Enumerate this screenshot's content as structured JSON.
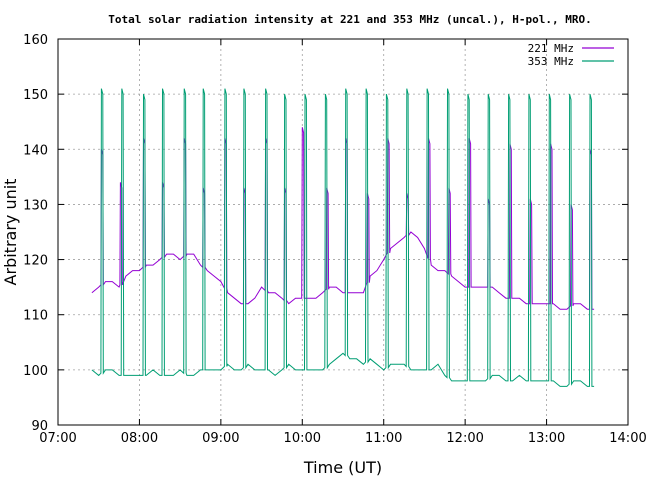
{
  "chart_data": {
    "type": "line",
    "title": "Total solar radiation intensity at 221 and 353 MHz (uncal.), H-pol., MRO.",
    "xlabel": "Time (UT)",
    "ylabel": "Arbitrary unit",
    "xlim": [
      "07:00",
      "14:00"
    ],
    "ylim": [
      90,
      160
    ],
    "xticks": [
      "07:00",
      "08:00",
      "09:00",
      "10:00",
      "11:00",
      "12:00",
      "13:00",
      "14:00"
    ],
    "yticks": [
      90,
      100,
      110,
      120,
      130,
      140,
      150,
      160
    ],
    "grid": true,
    "legend_position": "top-right",
    "series": [
      {
        "name": "221 MHz",
        "color": "#9400d3",
        "baseline": [
          [
            "07:25",
            114
          ],
          [
            "07:30",
            115
          ],
          [
            "07:35",
            116
          ],
          [
            "07:40",
            116
          ],
          [
            "07:45",
            115
          ],
          [
            "07:50",
            117
          ],
          [
            "07:55",
            118
          ],
          [
            "08:00",
            118
          ],
          [
            "08:05",
            119
          ],
          [
            "08:10",
            119
          ],
          [
            "08:15",
            120
          ],
          [
            "08:20",
            121
          ],
          [
            "08:25",
            121
          ],
          [
            "08:30",
            120
          ],
          [
            "08:35",
            121
          ],
          [
            "08:40",
            121
          ],
          [
            "08:45",
            119
          ],
          [
            "08:50",
            118
          ],
          [
            "08:55",
            117
          ],
          [
            "09:00",
            116
          ],
          [
            "09:05",
            114
          ],
          [
            "09:10",
            113
          ],
          [
            "09:15",
            112
          ],
          [
            "09:20",
            112
          ],
          [
            "09:25",
            113
          ],
          [
            "09:30",
            115
          ],
          [
            "09:35",
            114
          ],
          [
            "09:40",
            114
          ],
          [
            "09:45",
            113
          ],
          [
            "09:50",
            112
          ],
          [
            "09:55",
            113
          ],
          [
            "10:00",
            113
          ],
          [
            "10:05",
            113
          ],
          [
            "10:10",
            113
          ],
          [
            "10:15",
            114
          ],
          [
            "10:20",
            115
          ],
          [
            "10:25",
            115
          ],
          [
            "10:30",
            114
          ],
          [
            "10:35",
            114
          ],
          [
            "10:40",
            114
          ],
          [
            "10:45",
            114
          ],
          [
            "10:50",
            117
          ],
          [
            "10:55",
            118
          ],
          [
            "11:00",
            120
          ],
          [
            "11:05",
            122
          ],
          [
            "11:10",
            123
          ],
          [
            "11:15",
            124
          ],
          [
            "11:20",
            125
          ],
          [
            "11:25",
            124
          ],
          [
            "11:30",
            122
          ],
          [
            "11:35",
            119
          ],
          [
            "11:40",
            118
          ],
          [
            "11:45",
            118
          ],
          [
            "11:50",
            117
          ],
          [
            "11:55",
            116
          ],
          [
            "12:00",
            115
          ],
          [
            "12:05",
            115
          ],
          [
            "12:10",
            115
          ],
          [
            "12:15",
            115
          ],
          [
            "12:20",
            115
          ],
          [
            "12:25",
            114
          ],
          [
            "12:30",
            113
          ],
          [
            "12:35",
            113
          ],
          [
            "12:40",
            113
          ],
          [
            "12:45",
            112
          ],
          [
            "12:50",
            112
          ],
          [
            "12:55",
            112
          ],
          [
            "13:00",
            112
          ],
          [
            "13:05",
            112
          ],
          [
            "13:10",
            111
          ],
          [
            "13:15",
            111
          ],
          [
            "13:20",
            112
          ],
          [
            "13:25",
            112
          ],
          [
            "13:30",
            111
          ],
          [
            "13:35",
            111
          ]
        ],
        "spikes": [
          [
            "07:32",
            140
          ],
          [
            "07:46",
            134
          ],
          [
            "08:03",
            142
          ],
          [
            "08:17",
            134
          ],
          [
            "08:33",
            142
          ],
          [
            "08:47",
            133
          ],
          [
            "09:03",
            142
          ],
          [
            "09:17",
            133
          ],
          [
            "09:33",
            142
          ],
          [
            "09:47",
            133
          ],
          [
            "10:00",
            144
          ],
          [
            "10:18",
            133
          ],
          [
            "10:32",
            142
          ],
          [
            "10:48",
            132
          ],
          [
            "11:03",
            142
          ],
          [
            "11:17",
            132
          ],
          [
            "11:33",
            142
          ],
          [
            "11:48",
            133
          ],
          [
            "12:03",
            142
          ],
          [
            "12:17",
            131
          ],
          [
            "12:33",
            141
          ],
          [
            "12:48",
            131
          ],
          [
            "13:03",
            141
          ],
          [
            "13:18",
            130
          ],
          [
            "13:32",
            140
          ]
        ]
      },
      {
        "name": "353 MHz",
        "color": "#009e73",
        "baseline": [
          [
            "07:25",
            100
          ],
          [
            "07:30",
            99
          ],
          [
            "07:35",
            100
          ],
          [
            "07:40",
            100
          ],
          [
            "07:45",
            99
          ],
          [
            "07:50",
            99
          ],
          [
            "07:55",
            99
          ],
          [
            "08:00",
            99
          ],
          [
            "08:05",
            99
          ],
          [
            "08:10",
            100
          ],
          [
            "08:15",
            99
          ],
          [
            "08:20",
            99
          ],
          [
            "08:25",
            99
          ],
          [
            "08:30",
            100
          ],
          [
            "08:35",
            99
          ],
          [
            "08:40",
            99
          ],
          [
            "08:45",
            100
          ],
          [
            "08:50",
            100
          ],
          [
            "08:55",
            100
          ],
          [
            "09:00",
            100
          ],
          [
            "09:05",
            101
          ],
          [
            "09:10",
            100
          ],
          [
            "09:15",
            100
          ],
          [
            "09:20",
            101
          ],
          [
            "09:25",
            100
          ],
          [
            "09:30",
            100
          ],
          [
            "09:35",
            100
          ],
          [
            "09:40",
            99
          ],
          [
            "09:45",
            100
          ],
          [
            "09:50",
            101
          ],
          [
            "09:55",
            100
          ],
          [
            "10:00",
            100
          ],
          [
            "10:05",
            100
          ],
          [
            "10:10",
            100
          ],
          [
            "10:15",
            100
          ],
          [
            "10:20",
            101
          ],
          [
            "10:25",
            102
          ],
          [
            "10:30",
            103
          ],
          [
            "10:35",
            102
          ],
          [
            "10:40",
            102
          ],
          [
            "10:45",
            101
          ],
          [
            "10:50",
            102
          ],
          [
            "10:55",
            101
          ],
          [
            "11:00",
            100
          ],
          [
            "11:05",
            101
          ],
          [
            "11:10",
            101
          ],
          [
            "11:15",
            101
          ],
          [
            "11:20",
            100
          ],
          [
            "11:25",
            100
          ],
          [
            "11:30",
            100
          ],
          [
            "11:35",
            100
          ],
          [
            "11:40",
            101
          ],
          [
            "11:45",
            99
          ],
          [
            "11:50",
            98
          ],
          [
            "11:55",
            98
          ],
          [
            "12:00",
            98
          ],
          [
            "12:05",
            98
          ],
          [
            "12:10",
            98
          ],
          [
            "12:15",
            98
          ],
          [
            "12:20",
            99
          ],
          [
            "12:25",
            99
          ],
          [
            "12:30",
            98
          ],
          [
            "12:35",
            98
          ],
          [
            "12:40",
            99
          ],
          [
            "12:45",
            98
          ],
          [
            "12:50",
            98
          ],
          [
            "12:55",
            98
          ],
          [
            "13:00",
            98
          ],
          [
            "13:05",
            98
          ],
          [
            "13:10",
            97
          ],
          [
            "13:15",
            97
          ],
          [
            "13:20",
            98
          ],
          [
            "13:25",
            98
          ],
          [
            "13:30",
            97
          ],
          [
            "13:35",
            97
          ]
        ],
        "spikes": [
          [
            "07:32",
            151
          ],
          [
            "07:47",
            151
          ],
          [
            "08:03",
            150
          ],
          [
            "08:17",
            151
          ],
          [
            "08:33",
            151
          ],
          [
            "08:47",
            151
          ],
          [
            "09:03",
            151
          ],
          [
            "09:17",
            151
          ],
          [
            "09:33",
            151
          ],
          [
            "09:47",
            150
          ],
          [
            "10:02",
            150
          ],
          [
            "10:17",
            150
          ],
          [
            "10:32",
            151
          ],
          [
            "10:47",
            151
          ],
          [
            "11:02",
            150
          ],
          [
            "11:17",
            151
          ],
          [
            "11:32",
            151
          ],
          [
            "11:47",
            151
          ],
          [
            "12:02",
            150
          ],
          [
            "12:17",
            150
          ],
          [
            "12:32",
            150
          ],
          [
            "12:47",
            150
          ],
          [
            "13:02",
            150
          ],
          [
            "13:17",
            150
          ],
          [
            "13:32",
            150
          ]
        ]
      }
    ]
  }
}
